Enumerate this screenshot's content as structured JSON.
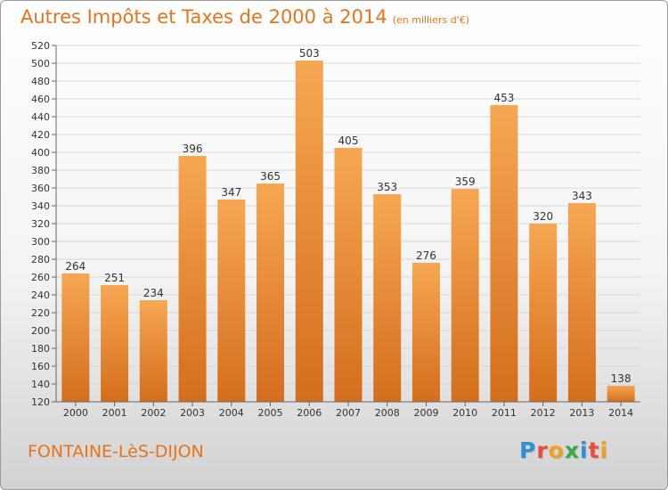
{
  "header": {
    "title": "Autres Impôts et Taxes de 2000 à 2014",
    "subtitle": "(en milliers d'€)"
  },
  "footer": {
    "city": "FONTAINE-LèS-DIJON"
  },
  "logo": {
    "text": "Proxiti",
    "letters": [
      {
        "ch": "P",
        "color": "#2f8fd8"
      },
      {
        "ch": "r",
        "color": "#e84c3d"
      },
      {
        "ch": "o",
        "color": "#f0a020"
      },
      {
        "ch": "x",
        "color": "#3aa84a"
      },
      {
        "ch": "i",
        "color": "#2f8fd8"
      },
      {
        "ch": "t",
        "color": "#e84c3d"
      },
      {
        "ch": "i",
        "color": "#f0a020"
      }
    ]
  },
  "chart_data": {
    "type": "bar",
    "title": "Autres Impôts et Taxes de 2000 à 2014",
    "subtitle": "(en milliers d'€)",
    "categories": [
      "2000",
      "2001",
      "2002",
      "2003",
      "2004",
      "2005",
      "2006",
      "2007",
      "2008",
      "2009",
      "2010",
      "2011",
      "2012",
      "2013",
      "2014"
    ],
    "values": [
      264,
      251,
      234,
      396,
      347,
      365,
      503,
      405,
      353,
      276,
      359,
      453,
      320,
      343,
      138
    ],
    "ylim": [
      120,
      520
    ],
    "ytick_step": 20,
    "grid": true,
    "bar_color_top": "#f7a752",
    "bar_color_bottom": "#d46e1c",
    "accent": "#e8731c"
  }
}
